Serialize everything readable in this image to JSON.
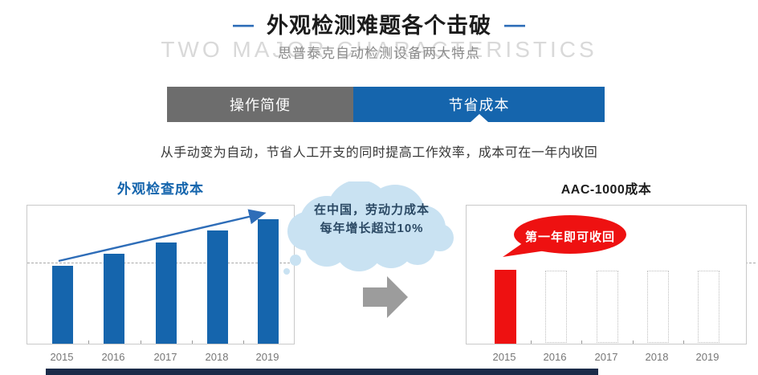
{
  "header": {
    "dash": "—",
    "title": "外观检测难题各个击破",
    "watermark": "TWO MAJOR CHARACTERISTICS",
    "subtitle": "思普泰克自动检测设备两大特点"
  },
  "tabs": [
    {
      "label": "操作简便",
      "active": false
    },
    {
      "label": "节省成本",
      "active": true
    }
  ],
  "description": "从手动变为自动，节省人工开支的同时提高工作效率，成本可在一年内收回",
  "cloud_note": {
    "line1": "在中国，劳动力成本",
    "line2": "每年增长超过10%"
  },
  "chart_data": [
    {
      "type": "bar",
      "title": "外观检查成本",
      "categories": [
        "2015",
        "2016",
        "2017",
        "2018",
        "2019"
      ],
      "values": [
        100,
        115,
        130,
        145,
        160
      ],
      "xlabel": "",
      "ylabel": "",
      "ylim": [
        0,
        180
      ],
      "grid": "single dashed reference line near first bar top",
      "legend": "none",
      "bar_color": "#1565ad",
      "annotations": [
        "rising blue trend arrow from 2015 bar top to 2019 bar top"
      ]
    },
    {
      "type": "bar",
      "title": "AAC-1000成本",
      "categories": [
        "2015",
        "2016",
        "2017",
        "2018",
        "2019"
      ],
      "values": [
        95,
        0,
        0,
        0,
        0
      ],
      "xlabel": "",
      "ylabel": "",
      "ylim": [
        0,
        180
      ],
      "grid": "single dashed reference line near first bar top",
      "legend": "none",
      "bar_color": "#ee1111",
      "placeholder_note": "2016-2019 shown as empty dotted-outline bars (no further cost)",
      "callout": "第一年即可收回"
    }
  ],
  "colors": {
    "accent_blue": "#1565ad",
    "dash_blue": "#2e6db8",
    "tab_gray": "#6d6d6d",
    "red": "#ee1111",
    "cloud_fill": "#c9e2f2",
    "cloud_text": "#2b4964",
    "watermark_gray": "#d9d9d9",
    "footer_navy": "#1b2b49"
  }
}
